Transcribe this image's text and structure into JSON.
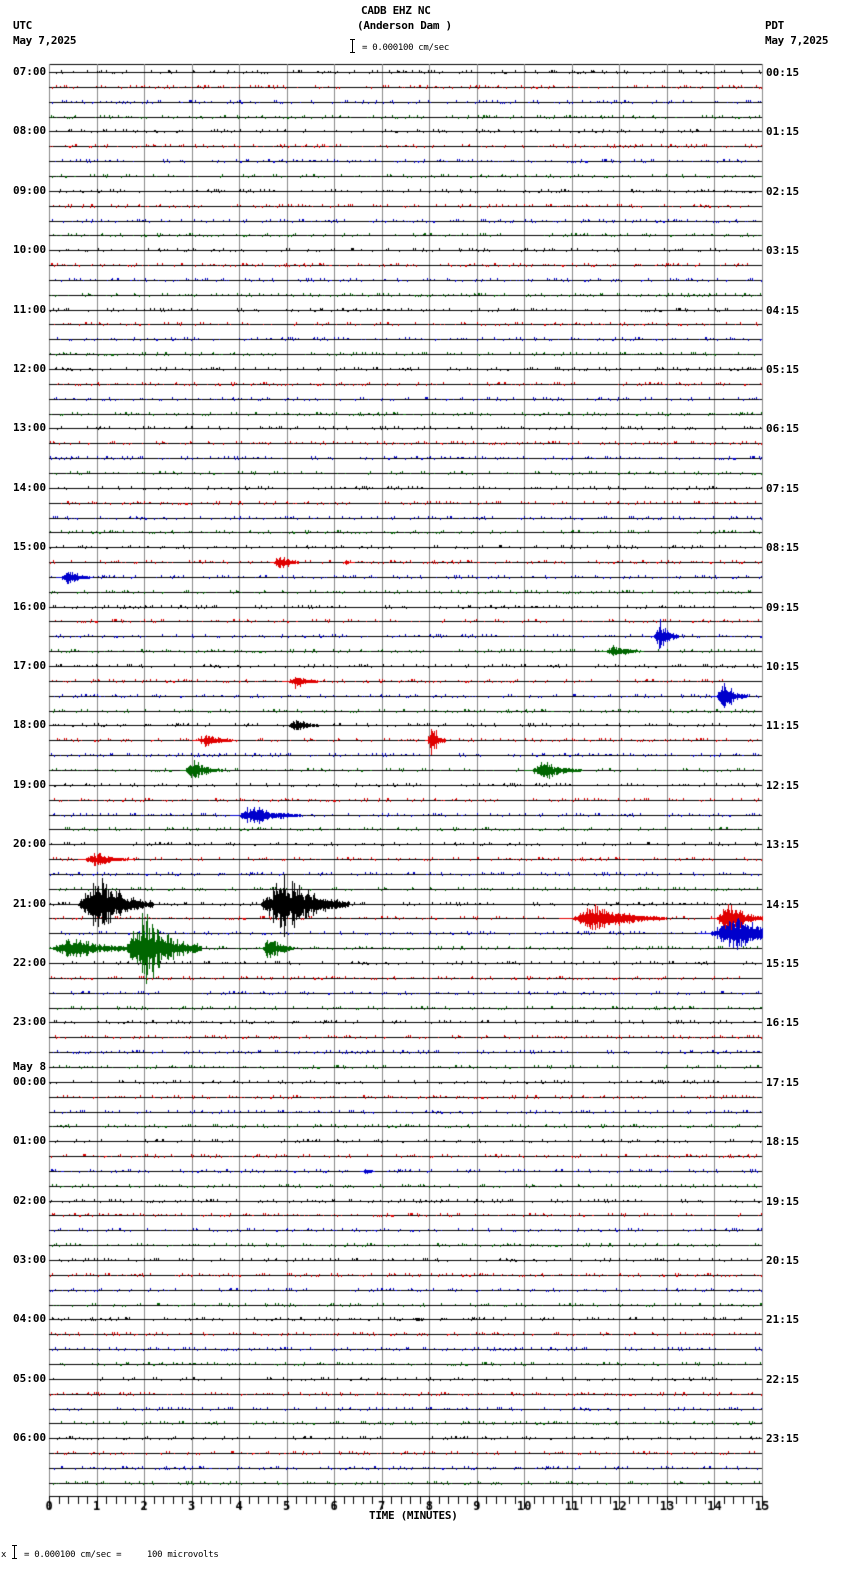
{
  "header": {
    "station": "CADB EHZ NC",
    "location": "(Anderson Dam )",
    "scale_text": "= 0.000100 cm/sec",
    "left_tz": "UTC",
    "left_date": "May 7,2025",
    "right_tz": "PDT",
    "right_date": "May 7,2025"
  },
  "footer": {
    "scale_text": "= 0.000100 cm/sec =     100 microvolts",
    "prefix": "x"
  },
  "chart_data": {
    "type": "seismogram",
    "title": "CADB EHZ NC (Anderson Dam )",
    "xlabel": "TIME (MINUTES)",
    "x_ticks": [
      "0",
      "1",
      "2",
      "3",
      "4",
      "5",
      "6",
      "7",
      "8",
      "9",
      "10",
      "11",
      "12",
      "13",
      "14",
      "15"
    ],
    "xlim": [
      0,
      15
    ],
    "rows": 96,
    "row_minutes": 15,
    "trace_colors": [
      "#000000",
      "#e00000",
      "#0000cc",
      "#006600"
    ],
    "left_labels": [
      {
        "row": 0,
        "text": "07:00"
      },
      {
        "row": 4,
        "text": "08:00"
      },
      {
        "row": 8,
        "text": "09:00"
      },
      {
        "row": 12,
        "text": "10:00"
      },
      {
        "row": 16,
        "text": "11:00"
      },
      {
        "row": 20,
        "text": "12:00"
      },
      {
        "row": 24,
        "text": "13:00"
      },
      {
        "row": 28,
        "text": "14:00"
      },
      {
        "row": 32,
        "text": "15:00"
      },
      {
        "row": 36,
        "text": "16:00"
      },
      {
        "row": 40,
        "text": "17:00"
      },
      {
        "row": 44,
        "text": "18:00"
      },
      {
        "row": 48,
        "text": "19:00"
      },
      {
        "row": 52,
        "text": "20:00"
      },
      {
        "row": 56,
        "text": "21:00"
      },
      {
        "row": 60,
        "text": "22:00"
      },
      {
        "row": 64,
        "text": "23:00"
      },
      {
        "row": 68,
        "text": "00:00",
        "date": "May 8"
      },
      {
        "row": 72,
        "text": "01:00"
      },
      {
        "row": 76,
        "text": "02:00"
      },
      {
        "row": 80,
        "text": "03:00"
      },
      {
        "row": 84,
        "text": "04:00"
      },
      {
        "row": 88,
        "text": "05:00"
      },
      {
        "row": 92,
        "text": "06:00"
      }
    ],
    "right_labels": [
      {
        "row": 0,
        "text": "00:15"
      },
      {
        "row": 4,
        "text": "01:15"
      },
      {
        "row": 8,
        "text": "02:15"
      },
      {
        "row": 12,
        "text": "03:15"
      },
      {
        "row": 16,
        "text": "04:15"
      },
      {
        "row": 20,
        "text": "05:15"
      },
      {
        "row": 24,
        "text": "06:15"
      },
      {
        "row": 28,
        "text": "07:15"
      },
      {
        "row": 32,
        "text": "08:15"
      },
      {
        "row": 36,
        "text": "09:15"
      },
      {
        "row": 40,
        "text": "10:15"
      },
      {
        "row": 44,
        "text": "11:15"
      },
      {
        "row": 48,
        "text": "12:15"
      },
      {
        "row": 52,
        "text": "13:15"
      },
      {
        "row": 56,
        "text": "14:15"
      },
      {
        "row": 60,
        "text": "15:15"
      },
      {
        "row": 64,
        "text": "16:15"
      },
      {
        "row": 68,
        "text": "17:15"
      },
      {
        "row": 72,
        "text": "18:15"
      },
      {
        "row": 76,
        "text": "19:15"
      },
      {
        "row": 80,
        "text": "20:15"
      },
      {
        "row": 84,
        "text": "21:15"
      },
      {
        "row": 88,
        "text": "22:15"
      },
      {
        "row": 92,
        "text": "23:15"
      }
    ],
    "events": [
      {
        "row": 33,
        "t": 4.85,
        "amp": 12,
        "dur": 0.4
      },
      {
        "row": 33,
        "t": 6.25,
        "amp": 3,
        "dur": 0.15
      },
      {
        "row": 34,
        "t": 0.4,
        "amp": 10,
        "dur": 0.5
      },
      {
        "row": 38,
        "t": 12.85,
        "amp": 20,
        "dur": 0.4
      },
      {
        "row": 39,
        "t": 11.9,
        "amp": 8,
        "dur": 0.6
      },
      {
        "row": 41,
        "t": 5.2,
        "amp": 9,
        "dur": 0.5
      },
      {
        "row": 42,
        "t": 14.2,
        "amp": 18,
        "dur": 0.5
      },
      {
        "row": 44,
        "t": 5.2,
        "amp": 9,
        "dur": 0.5
      },
      {
        "row": 45,
        "t": 3.3,
        "amp": 9,
        "dur": 0.6
      },
      {
        "row": 45,
        "t": 8.05,
        "amp": 24,
        "dur": 0.3
      },
      {
        "row": 47,
        "t": 3.05,
        "amp": 12,
        "dur": 0.6
      },
      {
        "row": 47,
        "t": 10.4,
        "amp": 12,
        "dur": 0.8
      },
      {
        "row": 50,
        "t": 4.3,
        "amp": 14,
        "dur": 1.0
      },
      {
        "row": 53,
        "t": 1.0,
        "amp": 8,
        "dur": 0.8
      },
      {
        "row": 56,
        "t": 1.0,
        "amp": 38,
        "dur": 1.2
      },
      {
        "row": 56,
        "t": 4.9,
        "amp": 40,
        "dur": 1.4
      },
      {
        "row": 57,
        "t": 11.5,
        "amp": 16,
        "dur": 1.5
      },
      {
        "row": 57,
        "t": 14.3,
        "amp": 20,
        "dur": 0.8
      },
      {
        "row": 58,
        "t": 14.4,
        "amp": 22,
        "dur": 1.5
      },
      {
        "row": 59,
        "t": 0.5,
        "amp": 14,
        "dur": 1.4
      },
      {
        "row": 59,
        "t": 2.0,
        "amp": 46,
        "dur": 1.2
      },
      {
        "row": 59,
        "t": 4.65,
        "amp": 18,
        "dur": 0.5
      },
      {
        "row": 74,
        "t": 6.65,
        "amp": 4,
        "dur": 0.2
      },
      {
        "row": 84,
        "t": 7.75,
        "amp": 2,
        "dur": 0.3
      }
    ]
  }
}
